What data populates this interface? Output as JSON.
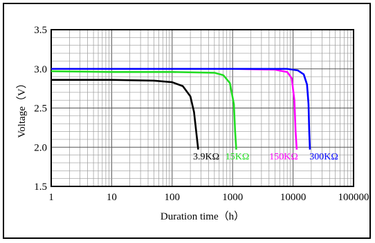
{
  "chart_data": {
    "type": "line",
    "xlabel": "Duration time（h）",
    "ylabel": "Voltage（V）",
    "xscale": "log",
    "xlim": [
      1,
      100000
    ],
    "ylim": [
      1.5,
      3.5
    ],
    "grid": true,
    "x_ticks": [
      1,
      10,
      100,
      1000,
      10000,
      100000
    ],
    "x_tick_labels": [
      "1",
      "10",
      "100",
      "1000",
      "10000",
      "100000"
    ],
    "y_ticks": [
      1.5,
      2.0,
      2.5,
      3.0,
      3.5
    ],
    "y_tick_labels": [
      "1.5",
      "2.0",
      "2.5",
      "3.0",
      "3.5"
    ],
    "series": [
      {
        "name": "3.9KΩ",
        "color": "#000000",
        "points": [
          [
            1,
            2.86
          ],
          [
            10,
            2.86
          ],
          [
            50,
            2.85
          ],
          [
            100,
            2.83
          ],
          [
            150,
            2.78
          ],
          [
            200,
            2.65
          ],
          [
            230,
            2.45
          ],
          [
            250,
            2.2
          ],
          [
            270,
            1.97
          ]
        ]
      },
      {
        "name": "15KΩ",
        "color": "#22dd22",
        "points": [
          [
            1,
            2.97
          ],
          [
            10,
            2.96
          ],
          [
            100,
            2.96
          ],
          [
            500,
            2.95
          ],
          [
            700,
            2.92
          ],
          [
            900,
            2.82
          ],
          [
            1050,
            2.55
          ],
          [
            1100,
            2.2
          ],
          [
            1150,
            1.97
          ]
        ]
      },
      {
        "name": "150KΩ",
        "color": "#ff00ff",
        "points": [
          [
            1,
            3.0
          ],
          [
            100,
            3.0
          ],
          [
            1000,
            3.0
          ],
          [
            5000,
            2.99
          ],
          [
            8000,
            2.96
          ],
          [
            9500,
            2.88
          ],
          [
            10500,
            2.6
          ],
          [
            11000,
            2.2
          ],
          [
            11500,
            1.97
          ]
        ]
      },
      {
        "name": "300KΩ",
        "color": "#0000ff",
        "points": [
          [
            1,
            3.0
          ],
          [
            1000,
            3.0
          ],
          [
            8000,
            3.0
          ],
          [
            12000,
            2.98
          ],
          [
            15000,
            2.93
          ],
          [
            17000,
            2.8
          ],
          [
            18000,
            2.55
          ],
          [
            18500,
            2.2
          ],
          [
            19000,
            1.97
          ]
        ]
      }
    ]
  }
}
